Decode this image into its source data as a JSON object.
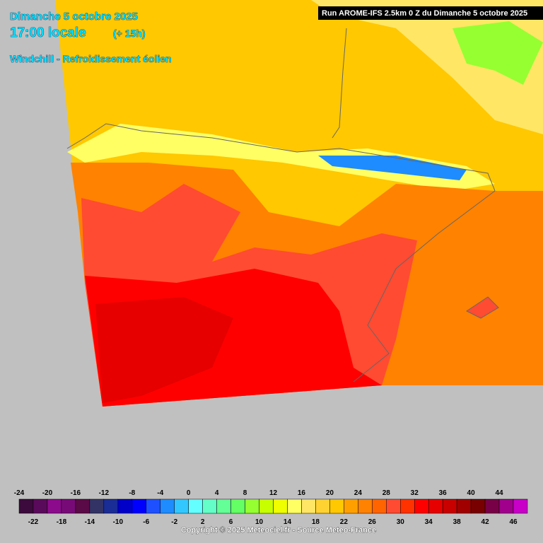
{
  "header": {
    "date": "Dimanche 5 octobre 2025",
    "time": "17:00 locale",
    "lead": "(+ 15h)",
    "parameter": "Windchill - Refroidissement éolien",
    "run": "Run AROME-IFS 2.5km 0 Z du Dimanche 5 octobre 2025"
  },
  "colorbar": {
    "values": [
      -24,
      -22,
      -20,
      -18,
      -16,
      -14,
      -12,
      -10,
      -8,
      -6,
      -4,
      -2,
      0,
      2,
      4,
      6,
      8,
      10,
      12,
      14,
      16,
      18,
      20,
      22,
      24,
      26,
      28,
      30,
      32,
      34,
      36,
      38,
      40,
      42,
      44,
      46
    ],
    "colors": [
      "#3c0a3c",
      "#5a0a5a",
      "#8c0a8c",
      "#780a78",
      "#5a0a46",
      "#333366",
      "#1a2c96",
      "#0000c8",
      "#0000ff",
      "#1e50ff",
      "#1e8cff",
      "#32c8ff",
      "#64ffff",
      "#64ffc8",
      "#64ff96",
      "#64ff64",
      "#96ff32",
      "#c8ff00",
      "#f0ff00",
      "#ffff64",
      "#ffe664",
      "#ffd232",
      "#ffc800",
      "#ffa000",
      "#ff8200",
      "#ff6400",
      "#ff4b32",
      "#ff3200",
      "#ff0000",
      "#e60000",
      "#c80000",
      "#a00000",
      "#780000",
      "#780046",
      "#a0008c",
      "#c800c8",
      "#e600e6",
      "#ff00ff",
      "#ff64ff"
    ]
  },
  "footer": {
    "copyright": "Copyright © 2025 Meteociel.fr - Source Meteo-France"
  }
}
